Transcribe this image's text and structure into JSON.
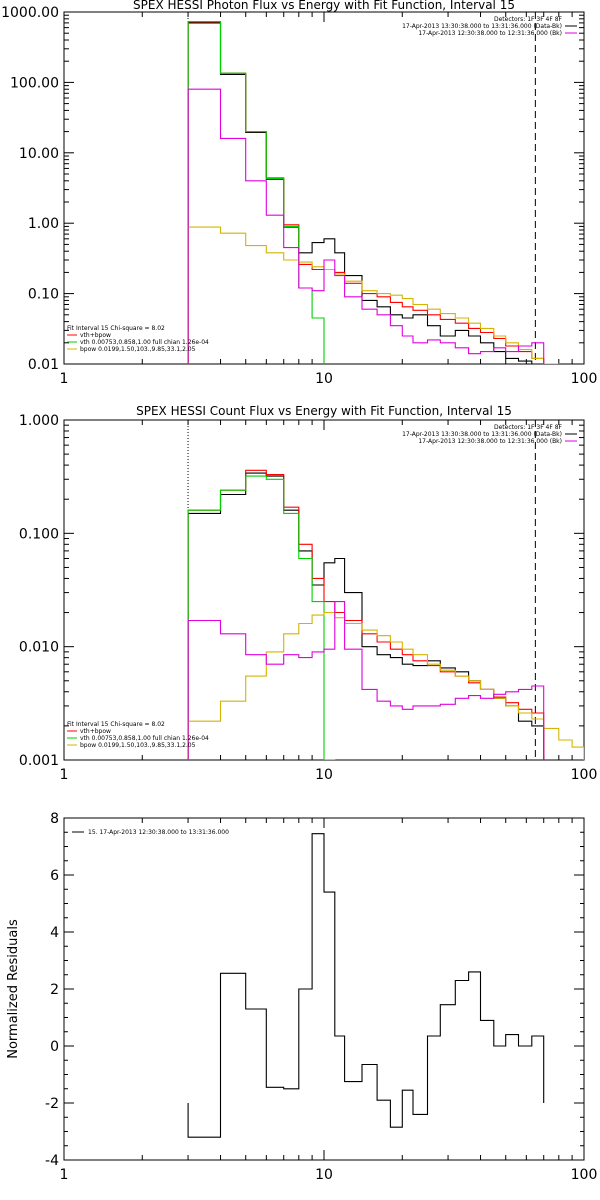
{
  "colors": {
    "data_black": "#000000",
    "sum_red": "#ff0000",
    "vth_green": "#00d000",
    "bpow_yellow": "#d4b400",
    "bkg_magenta": "#e000e0"
  },
  "xticks": [
    {
      "v": 1,
      "label": "1"
    },
    {
      "v": 10,
      "label": "10"
    },
    {
      "v": 100,
      "label": "100"
    }
  ],
  "chart_data": [
    {
      "type": "line",
      "title": "SPEX HESSI Photon Flux vs Energy with Fit Function, Interval 15",
      "xlabel": "",
      "ylabel": "",
      "xscale": "log",
      "yscale": "log",
      "xlim": [
        1,
        100
      ],
      "ylim": [
        0.01,
        1000
      ],
      "yticks": [
        {
          "v": 0.01,
          "label": "0.01"
        },
        {
          "v": 0.1,
          "label": "0.10"
        },
        {
          "v": 1,
          "label": "1.00"
        },
        {
          "v": 10,
          "label": "10.00"
        },
        {
          "v": 100,
          "label": "100.00"
        },
        {
          "v": 1000,
          "label": "1000.00"
        }
      ],
      "vlines": [
        {
          "x": 3,
          "style": "dotted"
        },
        {
          "x": 65,
          "style": "dashed"
        }
      ],
      "legend_right": [
        "Detectors: 1F 3F 4F 8F",
        "17-Apr-2013 13:30:38.000 to 13:31:36.000 (Data-Bk)",
        "17-Apr-2013 12:30:38.000 to 12:31:36.000 (Bk)"
      ],
      "legend_left": [
        "Fit Interval 15   Chi-square = 8.02",
        "vth+bpow",
        "vth 0.00753,0.858,1.00  full chian 1.26e-04",
        "bpow 0.0199,1.50,103.,9.85,33.1,2.05"
      ],
      "edges": [
        3,
        4,
        5,
        6,
        7,
        8,
        9,
        10,
        11,
        12,
        14,
        16,
        18,
        20,
        22,
        25,
        28,
        32,
        36,
        40,
        45,
        50,
        56,
        63,
        70,
        80,
        90,
        100
      ],
      "series": [
        {
          "name": "",
          "color": "data_black",
          "values": [
            700,
            130,
            19.5,
            4.2,
            0.88,
            0.38,
            0.53,
            0.6,
            0.38,
            0.18,
            0.08,
            0.065,
            0.05,
            0.045,
            0.05,
            0.035,
            0.025,
            0.03,
            0.025,
            0.02,
            0.015,
            0.012,
            0.011,
            0.01
          ]
        },
        {
          "name": "vth+bpow",
          "color": "sum_red",
          "values": [
            720,
            135,
            20,
            4.4,
            0.95,
            0.26,
            0.22,
            0.22,
            0.2,
            0.14,
            0.1,
            0.09,
            0.075,
            0.065,
            0.058,
            0.05,
            0.043,
            0.038,
            0.032,
            0.028,
            0.023,
            0.018,
            0.015,
            0.012
          ]
        },
        {
          "name": "vth",
          "color": "vth_green",
          "values": [
            730,
            135,
            20,
            4.3,
            0.9,
            0.12,
            0.045,
            0.008
          ]
        },
        {
          "name": "bpow",
          "color": "bpow_yellow",
          "values": [
            0.88,
            0.72,
            0.48,
            0.38,
            0.3,
            0.28,
            0.24,
            0.22,
            0.19,
            0.15,
            0.11,
            0.1,
            0.095,
            0.085,
            0.07,
            0.06,
            0.052,
            0.045,
            0.038,
            0.032,
            0.025,
            0.02,
            0.016,
            0.012,
            0.01
          ]
        },
        {
          "name": "",
          "color": "bkg_magenta",
          "values": [
            80,
            16,
            4,
            1.3,
            0.45,
            0.12,
            0.11,
            0.3,
            0.18,
            0.09,
            0.06,
            0.05,
            0.035,
            0.025,
            0.02,
            0.022,
            0.02,
            0.017,
            0.014,
            0.015,
            0.017,
            0.015,
            0.018,
            0.02
          ]
        }
      ]
    },
    {
      "type": "line",
      "title": "SPEX HESSI Count Flux vs Energy with Fit Function, Interval 15",
      "xlabel": "",
      "ylabel": "",
      "xscale": "log",
      "yscale": "log",
      "xlim": [
        1,
        100
      ],
      "ylim": [
        0.001,
        1
      ],
      "yticks": [
        {
          "v": 0.001,
          "label": "0.001"
        },
        {
          "v": 0.01,
          "label": "0.010"
        },
        {
          "v": 0.1,
          "label": "0.100"
        },
        {
          "v": 1,
          "label": "1.000"
        }
      ],
      "vlines": [
        {
          "x": 3,
          "style": "dotted"
        },
        {
          "x": 65,
          "style": "dashed"
        }
      ],
      "legend_right": [
        "Detectors: 1F 3F 4F 8F",
        "17-Apr-2013 13:30:38.000 to 13:31:36.000 (Data-Bk)",
        "17-Apr-2013 12:30:38.000 to 12:31:36.000 (Bk)"
      ],
      "legend_left": [
        "Fit Interval 15   Chi-square = 8.02",
        "vth+bpow",
        "vth 0.00753,0.858,1.00  full chian 1.26e-04",
        "bpow 0.0199,1.50,103.,9.85,33.1,2.05"
      ],
      "edges": [
        3,
        4,
        5,
        6,
        7,
        8,
        9,
        10,
        11,
        12,
        14,
        16,
        18,
        20,
        22,
        25,
        28,
        32,
        36,
        40,
        45,
        50,
        56,
        63,
        70,
        80,
        90,
        100
      ],
      "series": [
        {
          "name": "",
          "color": "data_black",
          "values": [
            0.15,
            0.22,
            0.34,
            0.32,
            0.16,
            0.07,
            0.035,
            0.055,
            0.06,
            0.03,
            0.01,
            0.0085,
            0.008,
            0.007,
            0.0068,
            0.0075,
            0.0065,
            0.006,
            0.005,
            0.0042,
            0.0035,
            0.003,
            0.0022,
            0.002
          ]
        },
        {
          "name": "vth+bpow",
          "color": "sum_red",
          "values": [
            0.16,
            0.24,
            0.36,
            0.33,
            0.17,
            0.08,
            0.04,
            0.025,
            0.02,
            0.017,
            0.013,
            0.011,
            0.0095,
            0.0085,
            0.0075,
            0.0068,
            0.006,
            0.0055,
            0.0048,
            0.0042,
            0.0036,
            0.0032,
            0.0028,
            0.0026
          ]
        },
        {
          "name": "vth",
          "color": "vth_green",
          "values": [
            0.16,
            0.24,
            0.32,
            0.3,
            0.15,
            0.06,
            0.025,
            0.001
          ]
        },
        {
          "name": "bpow",
          "color": "bpow_yellow",
          "values": [
            0.0022,
            0.0033,
            0.0055,
            0.009,
            0.013,
            0.016,
            0.019,
            0.02,
            0.018,
            0.016,
            0.014,
            0.0125,
            0.011,
            0.0095,
            0.0085,
            0.007,
            0.0062,
            0.0055,
            0.005,
            0.0042,
            0.0035,
            0.003,
            0.0026,
            0.0023,
            0.0019,
            0.0015,
            0.0013
          ]
        },
        {
          "name": "",
          "color": "bkg_magenta",
          "values": [
            0.017,
            0.013,
            0.0085,
            0.007,
            0.0085,
            0.008,
            0.009,
            0.0095,
            0.025,
            0.0095,
            0.0042,
            0.0033,
            0.003,
            0.0028,
            0.003,
            0.003,
            0.0031,
            0.0035,
            0.0037,
            0.0035,
            0.0038,
            0.004,
            0.0042,
            0.0045
          ]
        }
      ]
    },
    {
      "type": "line",
      "title": "",
      "xlabel": "",
      "ylabel": "Normalized Residuals",
      "xscale": "log",
      "yscale": "linear",
      "xlim": [
        1,
        100
      ],
      "ylim": [
        -4,
        8
      ],
      "yticks": [
        {
          "v": -4,
          "label": "-4"
        },
        {
          "v": -2,
          "label": "-2"
        },
        {
          "v": 0,
          "label": "0"
        },
        {
          "v": 2,
          "label": "2"
        },
        {
          "v": 4,
          "label": "4"
        },
        {
          "v": 6,
          "label": "6"
        },
        {
          "v": 8,
          "label": "8"
        }
      ],
      "vlines": [],
      "legend_left": [
        "15. 17-Apr-2013 12:30:38.000 to 13:31:36.000"
      ],
      "edges": [
        3,
        4,
        5,
        6,
        7,
        8,
        9,
        10,
        11,
        12,
        14,
        16,
        18,
        20,
        22,
        25,
        28,
        32,
        36,
        40,
        45,
        50,
        56,
        63,
        70
      ],
      "series": [
        {
          "name": "",
          "color": "data_black",
          "values": [
            -3.2,
            2.55,
            1.3,
            -1.45,
            -1.5,
            2.0,
            7.45,
            5.4,
            0.35,
            -1.25,
            -0.65,
            -1.9,
            -2.85,
            -1.55,
            -2.4,
            0.35,
            1.45,
            2.3,
            2.6,
            0.9,
            0.0,
            0.4,
            0.0,
            0.35
          ]
        }
      ]
    }
  ]
}
